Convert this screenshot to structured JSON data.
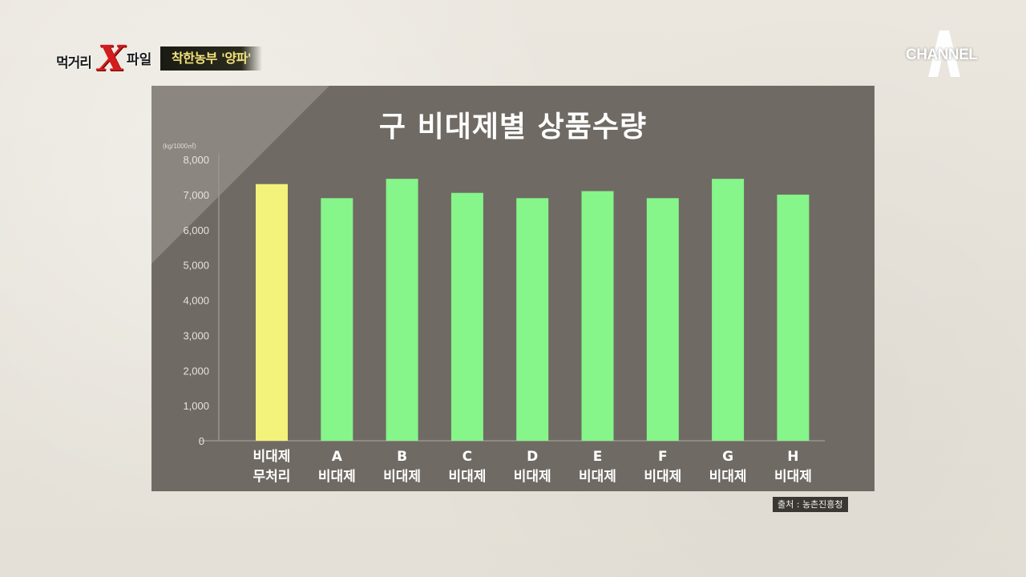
{
  "show": {
    "logo_part1": "먹거리",
    "logo_x": "X",
    "logo_part2": "파일",
    "episode_tag": "착한농부 '양파'"
  },
  "channel": {
    "logo_text": "CHANNEL",
    "logo_letter": "A"
  },
  "source_note": "출처 : 농촌진흥청",
  "colors": {
    "control_bar": "#f3f27a",
    "treatment_bar": "#86f58a",
    "panel": "#6f6a63"
  },
  "chart_data": {
    "type": "bar",
    "title": "구 비대제별 상품수량",
    "unit_label": "(kg/1000㎡)",
    "xlabel": "",
    "ylabel": "",
    "ylim": [
      0,
      8000
    ],
    "yticks": [
      "0",
      "1,000",
      "2,000",
      "3,000",
      "4,000",
      "5,000",
      "6,000",
      "7,000",
      "8,000"
    ],
    "categories": [
      [
        "비대제",
        "무처리"
      ],
      [
        "A",
        "비대제"
      ],
      [
        "B",
        "비대제"
      ],
      [
        "C",
        "비대제"
      ],
      [
        "D",
        "비대제"
      ],
      [
        "E",
        "비대제"
      ],
      [
        "F",
        "비대제"
      ],
      [
        "G",
        "비대제"
      ],
      [
        "H",
        "비대제"
      ]
    ],
    "values": [
      7300,
      6900,
      7450,
      7050,
      6900,
      7100,
      6900,
      7450,
      7000
    ],
    "highlight_index": 0,
    "grid": false,
    "legend": "none"
  }
}
